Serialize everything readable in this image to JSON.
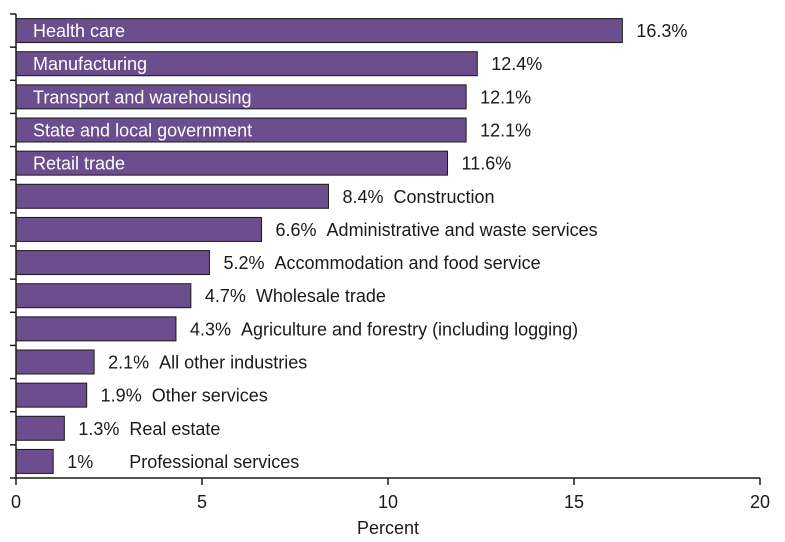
{
  "chart_data": {
    "type": "bar",
    "orientation": "horizontal",
    "xlabel": "Percent",
    "xlim": [
      0,
      20
    ],
    "xticks": [
      0,
      5,
      10,
      15,
      20
    ],
    "xtick_labels": [
      "0",
      "5",
      "10",
      "15",
      "20"
    ],
    "bar_color": "#6c4d8d",
    "grid": false,
    "bars": [
      {
        "category": "Health care",
        "value": 16.3,
        "label": "16.3%",
        "category_inside": true
      },
      {
        "category": "Manufacturing",
        "value": 12.4,
        "label": "12.4%",
        "category_inside": true
      },
      {
        "category": "Transport and warehousing",
        "value": 12.1,
        "label": "12.1%",
        "category_inside": true
      },
      {
        "category": "State and local government",
        "value": 12.1,
        "label": "12.1%",
        "category_inside": true
      },
      {
        "category": "Retail trade",
        "value": 11.6,
        "label": "11.6%",
        "category_inside": true
      },
      {
        "category": "Construction",
        "value": 8.4,
        "label": "8.4%",
        "category_inside": false
      },
      {
        "category": "Administrative and waste services",
        "value": 6.6,
        "label": "6.6%",
        "category_inside": false
      },
      {
        "category": "Accommodation and food service",
        "value": 5.2,
        "label": "5.2%",
        "category_inside": false
      },
      {
        "category": "Wholesale trade",
        "value": 4.7,
        "label": "4.7%",
        "category_inside": false
      },
      {
        "category": "Agriculture and forestry (including logging)",
        "value": 4.3,
        "label": "4.3%",
        "category_inside": false
      },
      {
        "category": "All other industries",
        "value": 2.1,
        "label": "2.1%",
        "category_inside": false
      },
      {
        "category": "Other services",
        "value": 1.9,
        "label": "1.9%",
        "category_inside": false
      },
      {
        "category": "Real estate",
        "value": 1.3,
        "label": "1.3%",
        "category_inside": false
      },
      {
        "category": "Professional services",
        "value": 1.0,
        "label": "1%",
        "category_inside": false
      }
    ]
  }
}
